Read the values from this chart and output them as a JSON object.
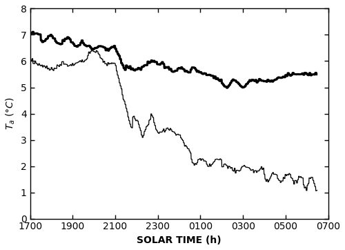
{
  "title": "",
  "xlabel": "SOLAR TIME (h)",
  "ylabel": "T_a (°C)",
  "ylim": [
    0,
    8
  ],
  "yticks": [
    0,
    1,
    2,
    3,
    4,
    5,
    6,
    7,
    8
  ],
  "xtick_labels": [
    "1700",
    "1900",
    "2100",
    "2300",
    "0100",
    "0300",
    "0500",
    "0700"
  ],
  "xtick_positions": [
    0,
    2,
    4,
    6,
    8,
    10,
    12,
    14
  ],
  "xlim": [
    0,
    14
  ],
  "background_color": "#ffffff",
  "line_color": "#000000",
  "bold_linewidth": 2.2,
  "thin_linewidth": 0.9
}
